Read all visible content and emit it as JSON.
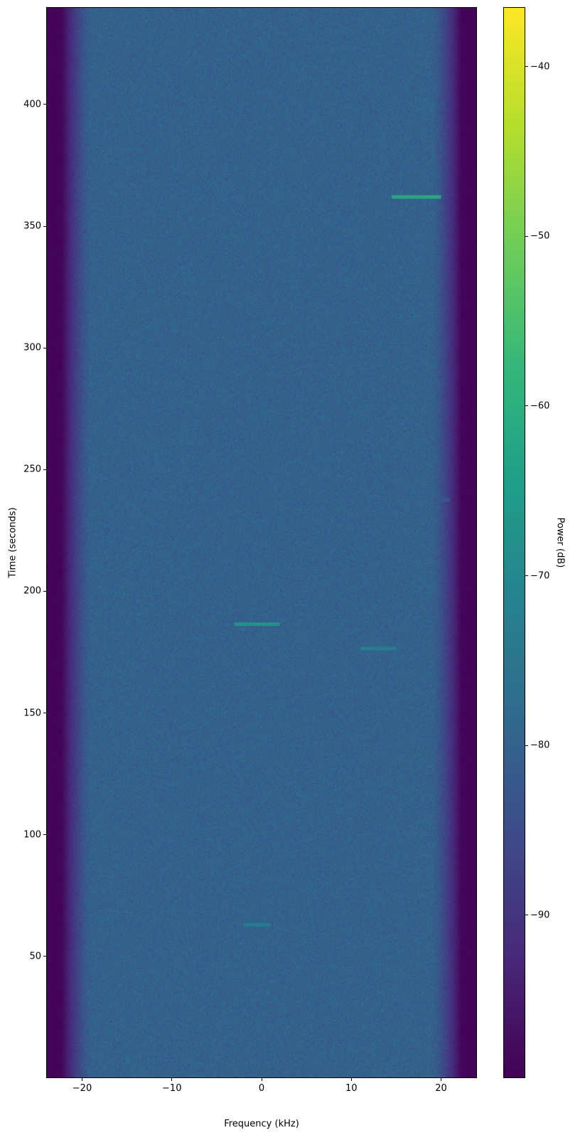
{
  "chart_data": {
    "type": "heatmap",
    "title": "",
    "xlabel": "Frequency (kHz)",
    "ylabel": "Time (seconds)",
    "xlim": [
      -24,
      24
    ],
    "ylim": [
      0,
      440
    ],
    "xticks": [
      -20,
      -10,
      0,
      10,
      20
    ],
    "xtick_labels": [
      "−20",
      "−10",
      "0",
      "10",
      "20"
    ],
    "yticks": [
      50,
      100,
      150,
      200,
      250,
      300,
      350,
      400
    ],
    "ytick_labels": [
      "50",
      "100",
      "150",
      "200",
      "250",
      "300",
      "350",
      "400"
    ],
    "colormap": "viridis",
    "colorbar": {
      "label": "Power (dB)",
      "range": [
        -99.6,
        -36.5
      ],
      "ticks": [
        -90,
        -80,
        -70,
        -60,
        -50,
        -40
      ],
      "tick_labels": [
        "−90",
        "−80",
        "−70",
        "−60",
        "−50",
        "−40"
      ]
    },
    "background": {
      "noise_floor_db": -80,
      "passband_khz": [
        -19,
        19
      ],
      "edge_floor_db": -99
    },
    "signals": [
      {
        "t": 362,
        "f_start": 14.5,
        "f_end": 20,
        "power_db": -61
      },
      {
        "t": 186.5,
        "f_start": -3,
        "f_end": 2,
        "power_db": -66
      },
      {
        "t": 176.5,
        "f_start": 11,
        "f_end": 15,
        "power_db": -72
      },
      {
        "t": 63,
        "f_start": -2,
        "f_end": 1,
        "power_db": -73
      },
      {
        "t": 237.5,
        "f_start": 19,
        "f_end": 21,
        "power_db": -82
      }
    ]
  }
}
